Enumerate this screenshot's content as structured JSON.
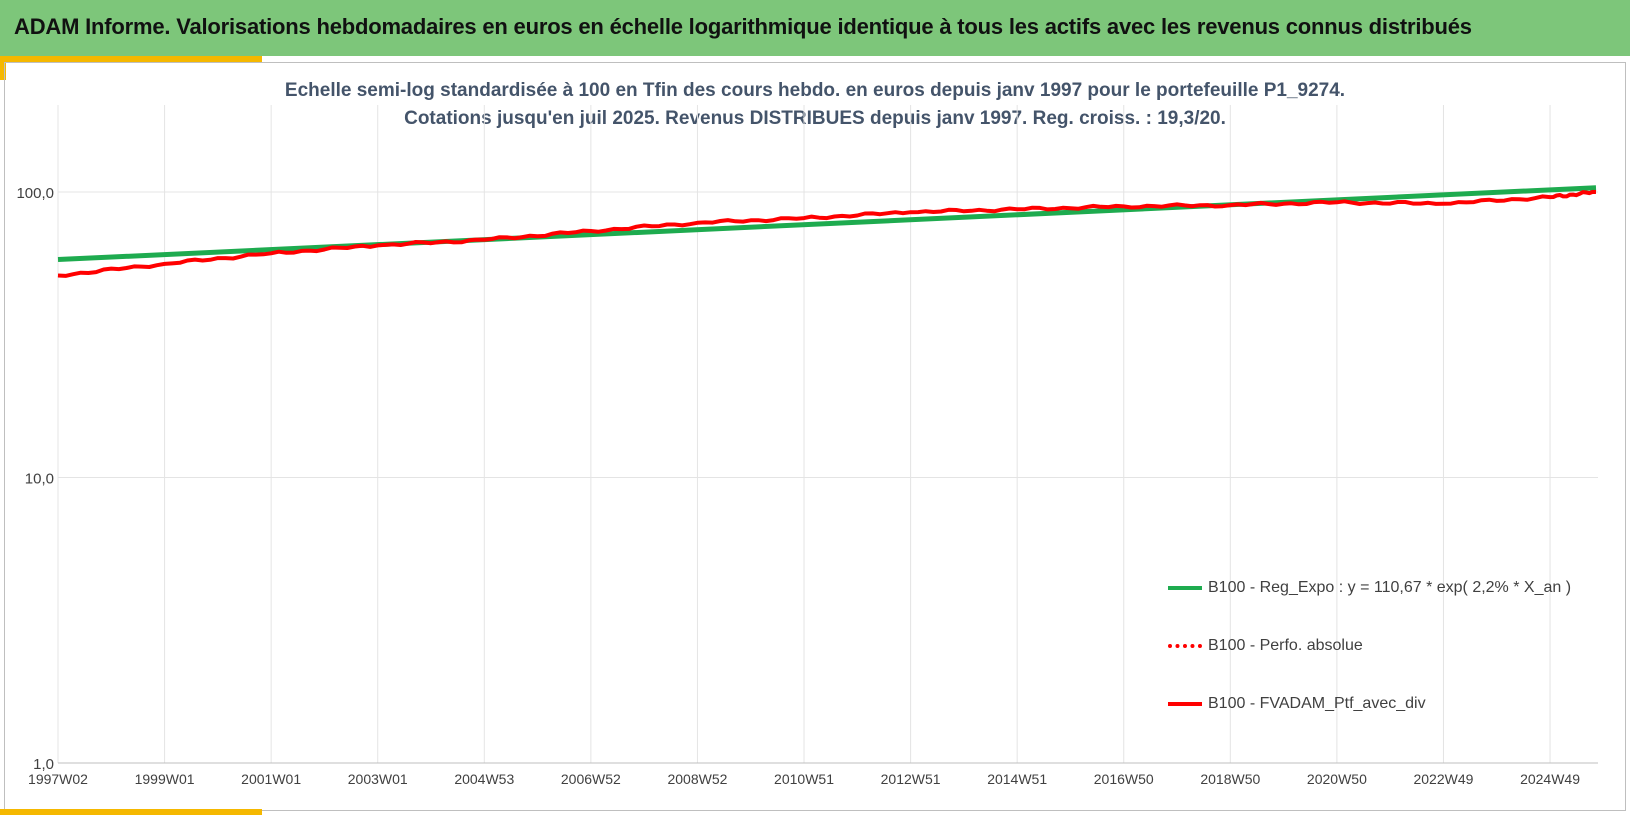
{
  "header": {
    "title": "ADAM Informe. Valorisations hebdomadaires en euros en échelle logarithmique identique à tous les actifs avec les revenus connus distribués"
  },
  "chart_data": {
    "type": "line",
    "title": "Echelle semi-log standardisée  à 100 en Tfin des cours hebdo.  en euros depuis janv 1997 pour  le portefeuille P1_9274.",
    "subtitle": "Cotations jusqu'en juil 2025. Revenus DISTRIBUES depuis janv 1997. Reg. croiss. : 19,3/20.",
    "y_scale": "log",
    "ylim": [
      1,
      200
    ],
    "y_ticks": [
      "1,0",
      "10,0",
      "100,0"
    ],
    "y_tick_values": [
      1,
      10,
      100
    ],
    "x_ticks": [
      "1997W02",
      "1999W01",
      "2001W01",
      "2003W01",
      "2004W53",
      "2006W52",
      "2008W52",
      "2010W51",
      "2012W51",
      "2014W51",
      "2016W50",
      "2018W50",
      "2020W50",
      "2022W49",
      "2024W49"
    ],
    "grid": true,
    "legend_position": "bottom-right",
    "series": [
      {
        "name": "B100 - Reg_Expo : y = 110,67 * exp( 2,2% *  X_an )",
        "color": "#1eab4f",
        "style": "solid",
        "x": [
          "1997W02",
          "2025W28"
        ],
        "values": [
          58,
          103.5
        ]
      },
      {
        "name": "B100 - Perfo. absolue",
        "color": "#ff0000",
        "style": "dotted",
        "x": [
          "1997W02",
          "1999W01",
          "2001W01",
          "2003W01",
          "2004W53",
          "2006W52",
          "2008W52",
          "2010W51",
          "2012W51",
          "2014W51",
          "2016W50",
          "2018W50",
          "2020W50",
          "2022W49",
          "2024W49",
          "2025W28"
        ],
        "values": [
          51,
          56,
          61,
          65,
          68,
          73,
          78,
          81,
          85,
          87,
          89,
          90,
          92,
          91,
          96,
          100
        ]
      },
      {
        "name": "B100 - FVADAM_Ptf_avec_div",
        "color": "#ff0000",
        "style": "solid",
        "x": [
          "1997W02",
          "1999W01",
          "2001W01",
          "2003W01",
          "2004W53",
          "2006W52",
          "2008W52",
          "2010W51",
          "2012W51",
          "2014W51",
          "2016W50",
          "2018W50",
          "2020W50",
          "2022W49",
          "2024W49",
          "2025W28"
        ],
        "values": [
          51,
          56,
          61,
          65,
          68,
          73,
          78,
          81,
          85,
          87,
          89,
          90,
          92,
          91,
          96,
          100
        ]
      }
    ]
  }
}
